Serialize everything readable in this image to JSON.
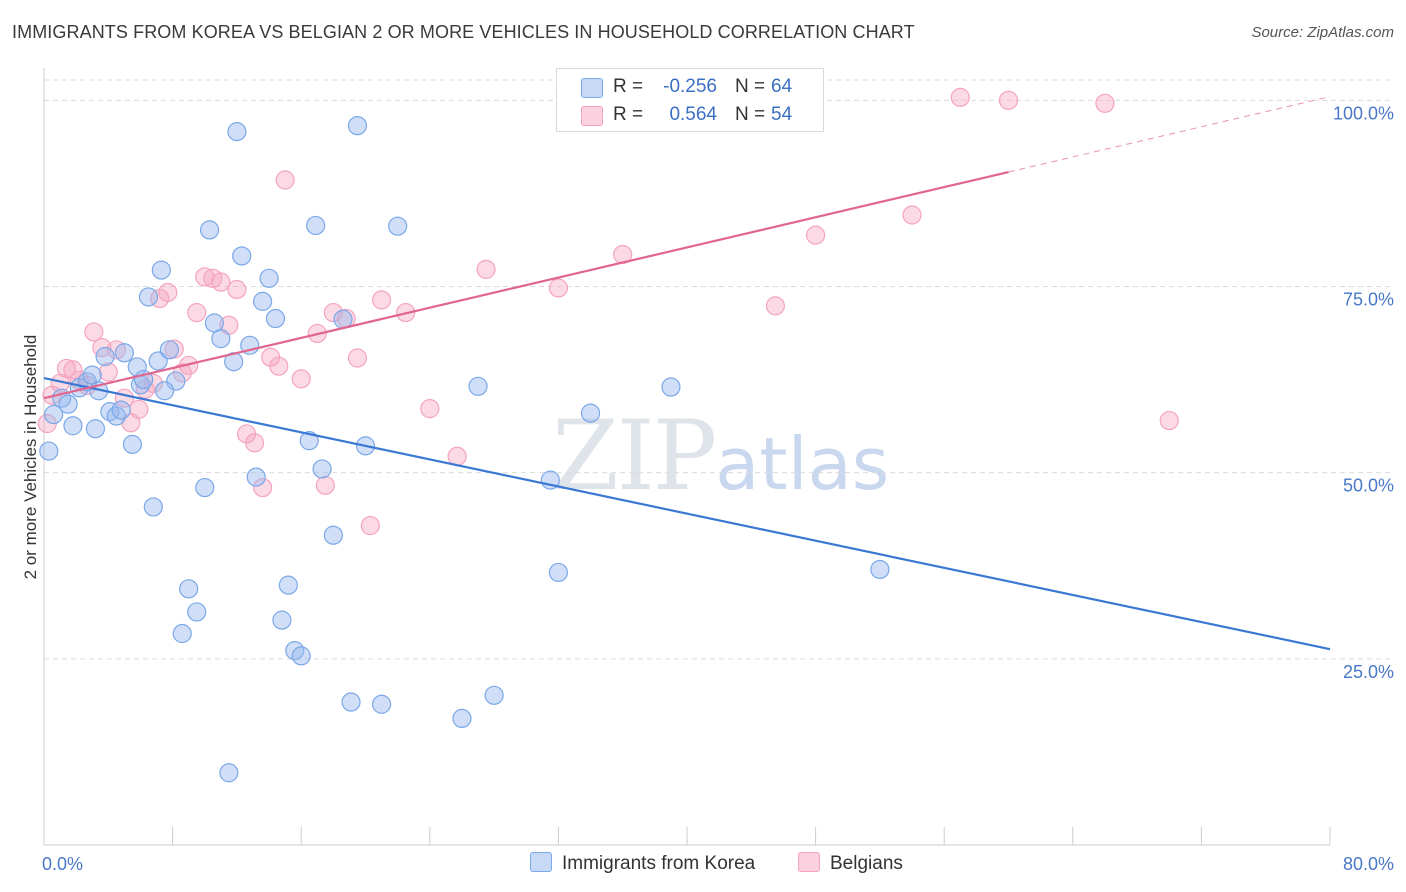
{
  "title": "IMMIGRANTS FROM KOREA VS BELGIAN 2 OR MORE VEHICLES IN HOUSEHOLD CORRELATION CHART",
  "source": "Source: ZipAtlas.com",
  "watermark": {
    "zip": "ZIP",
    "atlas": "atlas"
  },
  "legend_stats": [
    {
      "r_label": "R =",
      "r_value": "-0.256",
      "n_label": "N =",
      "n_value": "64"
    },
    {
      "r_label": "R =",
      "r_value": "0.564",
      "n_label": "N =",
      "n_value": "54"
    }
  ],
  "chart_data": {
    "type": "scatter",
    "title": "IMMIGRANTS FROM KOREA VS BELGIAN 2 OR MORE VEHICLES IN HOUSEHOLD CORRELATION CHART",
    "xlabel": "",
    "ylabel": "2 or more Vehicles in Household",
    "xlim": [
      0,
      80
    ],
    "ylim": [
      0,
      103
    ],
    "x_tick_labels": [
      "0.0%",
      "80.0%"
    ],
    "y_ticks": [
      25,
      50,
      75,
      100
    ],
    "y_tick_labels": [
      "25.0%",
      "50.0%",
      "75.0%",
      "100.0%"
    ],
    "grid": true,
    "legend": "bottom",
    "series": [
      {
        "name": "Immigrants from Korea",
        "color": "#7aa8e8",
        "trend_color": "#3a78d4",
        "trend": {
          "x": [
            0,
            80
          ],
          "y": [
            62.7,
            26.3
          ]
        },
        "x": [
          0.3,
          0.6,
          1.1,
          1.5,
          1.8,
          2.2,
          2.7,
          3.0,
          3.4,
          3.8,
          4.1,
          4.5,
          4.8,
          5.0,
          5.5,
          5.8,
          6.0,
          6.5,
          6.8,
          7.1,
          7.3,
          7.8,
          8.2,
          8.6,
          9.0,
          9.5,
          10.0,
          10.3,
          10.6,
          11.0,
          11.5,
          11.8,
          12.0,
          12.3,
          12.8,
          13.2,
          13.6,
          14.0,
          14.4,
          14.8,
          15.2,
          15.6,
          16.0,
          16.5,
          16.9,
          17.3,
          18.0,
          18.6,
          19.1,
          19.5,
          20.0,
          21.0,
          22.0,
          26.0,
          27.0,
          28.0,
          31.5,
          32.0,
          34.0,
          39.0,
          52.0,
          6.2,
          3.2,
          7.5
        ],
        "y": [
          52.9,
          57.8,
          60.0,
          59.2,
          56.3,
          61.4,
          62.2,
          63.1,
          61.0,
          65.6,
          58.2,
          57.6,
          58.4,
          66.1,
          53.8,
          64.2,
          61.8,
          73.6,
          45.4,
          65.0,
          77.2,
          66.5,
          62.3,
          28.4,
          34.4,
          31.3,
          48.0,
          82.6,
          70.1,
          68.0,
          9.7,
          64.9,
          95.8,
          79.1,
          67.1,
          49.4,
          73.0,
          76.1,
          70.7,
          30.2,
          34.9,
          26.1,
          25.4,
          54.3,
          83.2,
          50.5,
          41.6,
          70.6,
          19.2,
          96.6,
          53.6,
          18.9,
          83.1,
          17.0,
          61.6,
          20.1,
          49.0,
          36.6,
          58.0,
          61.5,
          37.0,
          62.5,
          55.9,
          61.0
        ]
      },
      {
        "name": "Belgians",
        "color": "#f5a3bf",
        "trend_color": "#e0658f",
        "trend": {
          "x": [
            0,
            80
          ],
          "y": [
            60.0,
            100.5
          ],
          "solid_until_x": 60
        },
        "x": [
          0.2,
          0.5,
          1.0,
          1.4,
          1.8,
          2.2,
          2.7,
          3.1,
          3.6,
          4.0,
          4.5,
          5.0,
          5.4,
          5.9,
          6.3,
          6.8,
          7.2,
          7.7,
          8.1,
          8.6,
          9.0,
          9.5,
          10.0,
          10.5,
          11.0,
          11.5,
          12.0,
          12.6,
          13.1,
          13.6,
          14.1,
          14.6,
          15.0,
          16.0,
          17.0,
          17.5,
          18.0,
          18.8,
          19.5,
          20.3,
          21.0,
          22.5,
          24.0,
          25.7,
          27.5,
          32.0,
          36.0,
          45.5,
          48.0,
          54.0,
          57.0,
          60.0,
          66.0,
          70.0
        ],
        "y": [
          56.6,
          60.4,
          62.0,
          64.0,
          63.8,
          62.4,
          61.7,
          68.9,
          66.8,
          63.5,
          66.5,
          60.0,
          56.7,
          58.5,
          61.2,
          62.0,
          73.4,
          74.2,
          66.6,
          63.4,
          64.4,
          71.5,
          76.3,
          76.1,
          75.6,
          69.8,
          74.6,
          55.2,
          54.0,
          48.0,
          65.5,
          64.3,
          89.3,
          62.6,
          68.7,
          48.3,
          71.5,
          70.7,
          65.4,
          42.9,
          73.2,
          71.5,
          58.6,
          52.2,
          77.3,
          74.8,
          79.3,
          72.4,
          81.9,
          84.6,
          100.4,
          100.0,
          99.6,
          57.0
        ]
      }
    ]
  }
}
